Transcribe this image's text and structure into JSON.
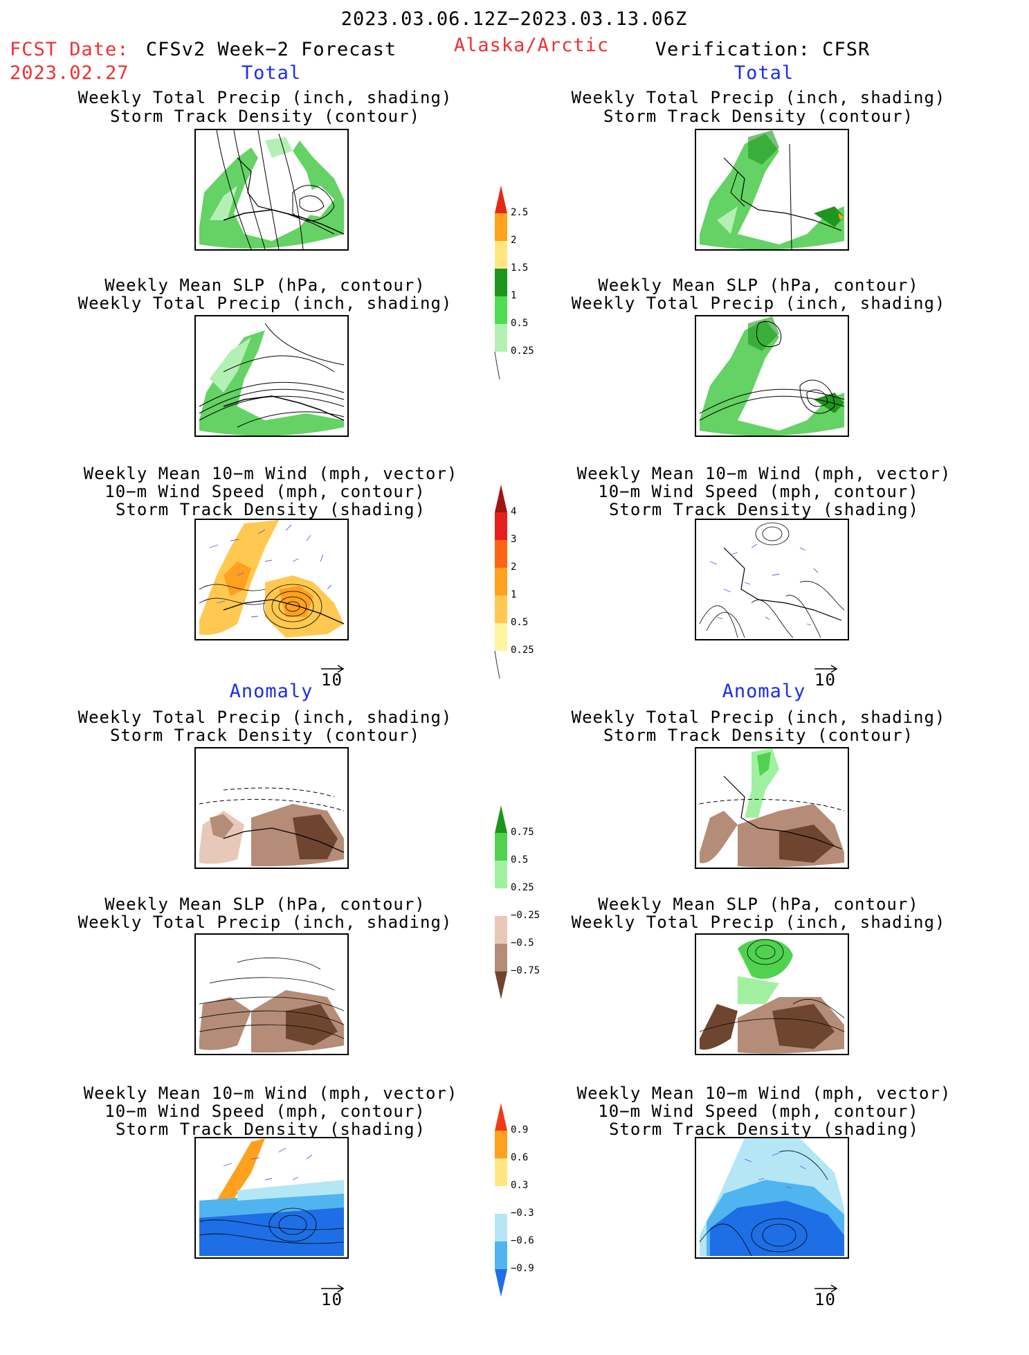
{
  "header": {
    "period": "2023.03.06.12Z−2023.03.13.06Z",
    "fcst_date_label": "FCST Date:",
    "fcst_date_value": "2023.02.27",
    "forecast_label": "CFSv2 Week−2 Forecast",
    "region": "Alaska/Arctic",
    "verification_label": "Verification: CFSR"
  },
  "sections": {
    "total": "Total",
    "anomaly": "Anomaly"
  },
  "titles": {
    "precip_storm": [
      "Weekly Total Precip (inch, shading)",
      "Storm Track Density (contour)"
    ],
    "slp_precip": [
      "Weekly Mean SLP (hPa, contour)",
      "Weekly Total Precip (inch, shading)"
    ],
    "wind_storm": [
      "Weekly Mean 10−m Wind (mph, vector)",
      "10−m Wind Speed (mph, contour)",
      "Storm Track Density (shading)"
    ]
  },
  "vector_scale_label": "10",
  "colorbars": {
    "precip_total": {
      "ticks": [
        "2.5",
        "2",
        "1.5",
        "1",
        "0.5",
        "0.25"
      ],
      "colors": [
        "#e62814",
        "#ffa21e",
        "#ffe680",
        "#1e961e",
        "#50dc50",
        "#b4f0b4"
      ]
    },
    "storm_total": {
      "ticks": [
        "4",
        "3",
        "2",
        "1",
        "0.5",
        "0.25"
      ],
      "colors": [
        "#a01414",
        "#e61e1e",
        "#ff6414",
        "#ffa01e",
        "#ffc850",
        "#fff5a0"
      ]
    },
    "precip_anom": {
      "ticks": [
        "0.75",
        "0.5",
        "0.25",
        "−0.25",
        "−0.5",
        "−0.75"
      ],
      "colors": [
        "#1e961e",
        "#50d250",
        "#a0f0a0",
        "#ffffff",
        "#e8c8b8",
        "#b48c78",
        "#6e4630"
      ]
    },
    "storm_anom": {
      "ticks": [
        "0.9",
        "0.6",
        "0.3",
        "−0.3",
        "−0.6",
        "−0.9"
      ],
      "colors": [
        "#f03c14",
        "#ffa01e",
        "#ffe680",
        "#ffffff",
        "#b4e6f5",
        "#50b4f0",
        "#1e6ee6"
      ]
    }
  },
  "colors": {
    "red_text": "#f03030",
    "blue_text": "#1a2cf0"
  }
}
